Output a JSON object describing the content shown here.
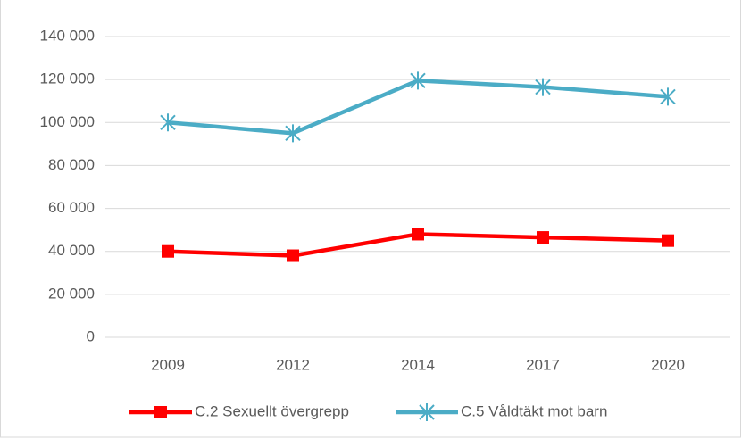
{
  "chart_data": {
    "type": "line",
    "categories": [
      "2009",
      "2012",
      "2014",
      "2017",
      "2020"
    ],
    "series": [
      {
        "name": "C.2 Sexuellt övergrepp",
        "color": "#ff0000",
        "marker": "square",
        "values": [
          40000,
          38000,
          48000,
          46500,
          45000
        ]
      },
      {
        "name": "C.5 Våldtäkt mot barn",
        "color": "#4bacc6",
        "marker": "star",
        "values": [
          100000,
          95000,
          119500,
          116500,
          112000
        ]
      }
    ],
    "ylim": [
      0,
      140000
    ],
    "yticks": [
      0,
      {
        "value": 20000,
        "label": "20 000"
      },
      {
        "value": 40000,
        "label": "40 000"
      },
      {
        "value": 60000,
        "label": "60 000"
      },
      {
        "value": 80000,
        "label": "80 000"
      },
      {
        "value": 100000,
        "label": "100 000"
      },
      {
        "value": 120000,
        "label": "120 000"
      },
      {
        "value": 140000,
        "label": "140 000"
      }
    ],
    "grid": true,
    "legend": "bottom"
  }
}
